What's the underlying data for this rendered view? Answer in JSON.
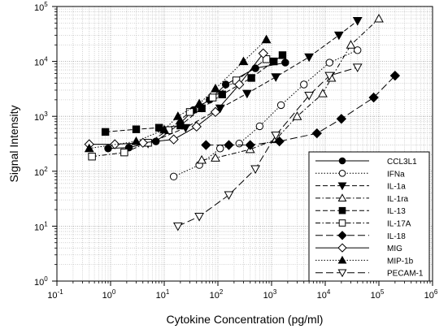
{
  "chart_data": {
    "type": "line",
    "xlabel": "Cytokine Concentration (pg/ml)",
    "ylabel": "Signal Intensity",
    "x_scale": "log",
    "y_scale": "log",
    "xlim": [
      0.1,
      1000000
    ],
    "ylim": [
      1,
      100000
    ],
    "x_ticks": [
      {
        "base": "10",
        "exp": "-1",
        "value": 0.1
      },
      {
        "base": "10",
        "exp": "0",
        "value": 1
      },
      {
        "base": "10",
        "exp": "1",
        "value": 10
      },
      {
        "base": "10",
        "exp": "2",
        "value": 100
      },
      {
        "base": "10",
        "exp": "3",
        "value": 1000
      },
      {
        "base": "10",
        "exp": "4",
        "value": 10000
      },
      {
        "base": "10",
        "exp": "5",
        "value": 100000
      },
      {
        "base": "10",
        "exp": "6",
        "value": 1000000
      }
    ],
    "y_ticks": [
      {
        "base": "10",
        "exp": "0",
        "value": 1
      },
      {
        "base": "10",
        "exp": "1",
        "value": 10
      },
      {
        "base": "10",
        "exp": "2",
        "value": 100
      },
      {
        "base": "10",
        "exp": "3",
        "value": 1000
      },
      {
        "base": "10",
        "exp": "4",
        "value": 10000
      },
      {
        "base": "10",
        "exp": "5",
        "value": 100000
      }
    ],
    "grid": "dotted-minor-and-major",
    "legend_position": "bottom-right",
    "series": [
      {
        "name": "CCL3L1",
        "marker": "circle-filled",
        "dash": "solid",
        "points": [
          [
            0.9,
            260
          ],
          [
            2.2,
            270
          ],
          [
            7,
            350
          ],
          [
            20,
            750
          ],
          [
            35,
            1300
          ],
          [
            70,
            2000
          ],
          [
            140,
            3800
          ],
          [
            500,
            7500
          ],
          [
            1800,
            9500
          ]
        ]
      },
      {
        "name": "IFNa",
        "marker": "circle-open",
        "dash": "dotted",
        "points": [
          [
            15,
            80
          ],
          [
            45,
            130
          ],
          [
            110,
            260
          ],
          [
            250,
            320
          ],
          [
            600,
            660
          ],
          [
            1500,
            1600
          ],
          [
            4000,
            3800
          ],
          [
            12000,
            9500
          ],
          [
            40000,
            16000
          ]
        ]
      },
      {
        "name": "IL-1a",
        "marker": "triangle-down-filled",
        "dash": "dash",
        "points": [
          [
            5,
            320
          ],
          [
            25,
            620
          ],
          [
            110,
            1400
          ],
          [
            350,
            2600
          ],
          [
            1200,
            5200
          ],
          [
            5000,
            12000
          ],
          [
            18000,
            30000
          ],
          [
            40000,
            55000
          ]
        ]
      },
      {
        "name": "IL-1ra",
        "marker": "triangle-up-open",
        "dash": "dashdot",
        "points": [
          [
            50,
            160
          ],
          [
            90,
            175
          ],
          [
            400,
            250
          ],
          [
            1200,
            380
          ],
          [
            3000,
            1000
          ],
          [
            9000,
            2600
          ],
          [
            13000,
            5000
          ],
          [
            30000,
            20000
          ],
          [
            100000,
            60000
          ]
        ]
      },
      {
        "name": "IL-13",
        "marker": "square-filled",
        "dash": "dash",
        "points": [
          [
            0.8,
            520
          ],
          [
            3,
            580
          ],
          [
            8,
            620
          ],
          [
            20,
            680
          ],
          [
            50,
            1400
          ],
          [
            120,
            2500
          ],
          [
            420,
            5000
          ],
          [
            1100,
            10000
          ],
          [
            1600,
            13000
          ]
        ]
      },
      {
        "name": "IL-17A",
        "marker": "square-open",
        "dash": "dashdot",
        "points": [
          [
            0.45,
            185
          ],
          [
            1.8,
            220
          ],
          [
            5,
            330
          ],
          [
            12,
            560
          ],
          [
            30,
            1200
          ],
          [
            80,
            2200
          ],
          [
            220,
            4500
          ],
          [
            800,
            11000
          ]
        ]
      },
      {
        "name": "IL-18",
        "marker": "diamond-filled",
        "dash": "dashlong",
        "points": [
          [
            60,
            300
          ],
          [
            160,
            300
          ],
          [
            400,
            300
          ],
          [
            1400,
            350
          ],
          [
            7000,
            490
          ],
          [
            20000,
            900
          ],
          [
            80000,
            2200
          ],
          [
            200000,
            5500
          ]
        ]
      },
      {
        "name": "MIG",
        "marker": "diamond-open",
        "dash": "solid",
        "points": [
          [
            0.4,
            310
          ],
          [
            1.2,
            310
          ],
          [
            4,
            330
          ],
          [
            15,
            380
          ],
          [
            40,
            650
          ],
          [
            90,
            1200
          ],
          [
            250,
            3800
          ],
          [
            700,
            14000
          ]
        ]
      },
      {
        "name": "MIP-1b",
        "marker": "triangle-up-filled",
        "dash": "dotted",
        "points": [
          [
            0.4,
            260
          ],
          [
            3,
            350
          ],
          [
            10,
            570
          ],
          [
            18,
            1000
          ],
          [
            45,
            1700
          ],
          [
            90,
            3200
          ],
          [
            300,
            10000
          ],
          [
            800,
            25000
          ]
        ]
      },
      {
        "name": "PECAM-1",
        "marker": "triangle-down-open",
        "dash": "dashlong",
        "points": [
          [
            18,
            10
          ],
          [
            45,
            15
          ],
          [
            160,
            37
          ],
          [
            500,
            110
          ],
          [
            1200,
            450
          ],
          [
            5000,
            2400
          ],
          [
            12000,
            5500
          ],
          [
            40000,
            7800
          ]
        ]
      }
    ]
  }
}
